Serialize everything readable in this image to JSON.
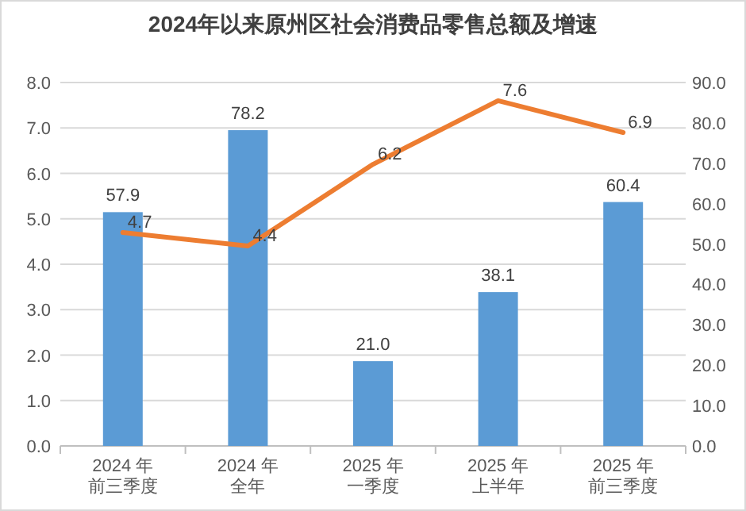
{
  "chart_data": {
    "type": "bar",
    "title": "2024年以来原州区社会消费品零售总额及增速",
    "categories": [
      "2024 年前三季度",
      "2024 年全年",
      "2025 年一季度",
      "2025 年上半年",
      "2025 年前三季度"
    ],
    "series": [
      {
        "axis": "y2",
        "color": "#5b9bd5",
        "values": [
          57.9,
          78.2,
          21.0,
          38.1,
          60.4
        ],
        "value_labels": [
          "57.9",
          "78.2",
          "21.0",
          "38.1",
          "60.4"
        ]
      },
      {
        "type": "line",
        "axis": "y",
        "color": "#ed7d31",
        "values": [
          4.7,
          4.4,
          6.2,
          7.6,
          6.9
        ]
      }
    ],
    "ylim": [
      0,
      8
    ],
    "yticks": [
      {
        "value": 0,
        "label": "0.0"
      },
      {
        "value": 1,
        "label": "1.0"
      },
      {
        "value": 2,
        "label": "2.0"
      },
      {
        "value": 3,
        "label": "3.0"
      },
      {
        "value": 4,
        "label": "4.0"
      },
      {
        "value": 5,
        "label": "5.0"
      },
      {
        "value": 6,
        "label": "6.0"
      },
      {
        "value": 7,
        "label": "7.0"
      },
      {
        "value": 8,
        "label": "8.0"
      }
    ],
    "y2lim": [
      0,
      90
    ],
    "y2ticks": [
      {
        "value": 0,
        "label": "0.0"
      },
      {
        "value": 10,
        "label": "10.0"
      },
      {
        "value": 20,
        "label": "20.0"
      },
      {
        "value": 30,
        "label": "30.0"
      },
      {
        "value": 40,
        "label": "40.0"
      },
      {
        "value": 50,
        "label": "50.0"
      },
      {
        "value": 60,
        "label": "60.0"
      },
      {
        "value": 70,
        "label": "70.0"
      },
      {
        "value": 80,
        "label": "80.0"
      },
      {
        "value": 90,
        "label": "90.0"
      }
    ],
    "grid": "y",
    "data_labels": true,
    "marker": "none",
    "line_style": "solid"
  }
}
